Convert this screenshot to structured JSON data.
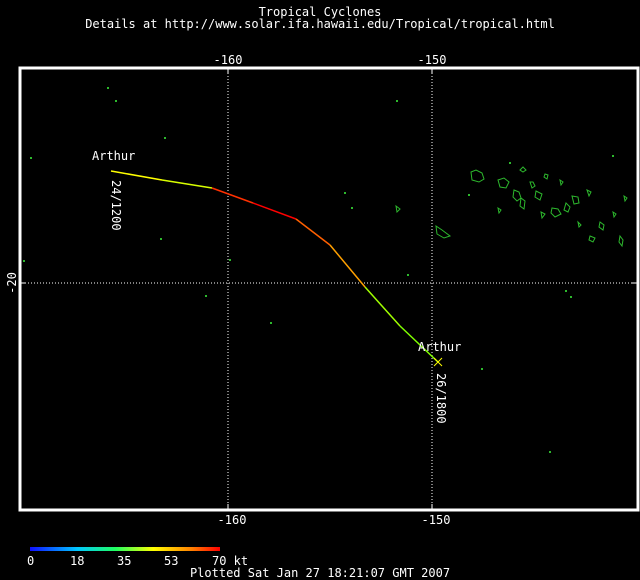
{
  "header": {
    "title": "Tropical Cyclones",
    "subtitle": "Details at http://www.solar.ifa.hawaii.edu/Tropical/tropical.html"
  },
  "axes": {
    "lon_labels": [
      "-160",
      "-150"
    ],
    "lat_labels": [
      "-20"
    ]
  },
  "storm": {
    "name": "Arthur",
    "start_label": "24/1200",
    "end_label": "26/1800"
  },
  "legend": {
    "ticks": [
      "0",
      "18",
      "35",
      "53",
      "70 kt"
    ]
  },
  "footer": {
    "plotted": "Plotted Sat Jan 27 18:21:07 GMT 2007"
  },
  "colors": {
    "background": "#000000",
    "land_outline": "#2db82d",
    "grid": "#ffffff"
  }
}
